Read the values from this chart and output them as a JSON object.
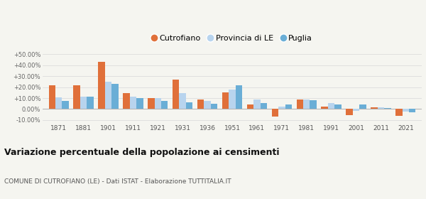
{
  "years": [
    1871,
    1881,
    1901,
    1911,
    1921,
    1931,
    1936,
    1951,
    1961,
    1971,
    1981,
    1991,
    2001,
    2011,
    2021
  ],
  "cutrofiano": [
    21.5,
    21.5,
    43.0,
    14.5,
    10.0,
    27.0,
    9.0,
    15.5,
    4.5,
    -7.0,
    8.5,
    2.0,
    -5.5,
    1.5,
    -6.0
  ],
  "provincia_le": [
    10.5,
    11.5,
    25.0,
    11.5,
    10.0,
    14.5,
    7.5,
    18.0,
    8.5,
    2.5,
    9.0,
    5.5,
    -1.5,
    1.5,
    -2.5
  ],
  "puglia": [
    7.5,
    11.5,
    23.0,
    10.0,
    7.5,
    6.0,
    5.0,
    21.5,
    5.5,
    4.5,
    8.0,
    4.0,
    4.0,
    1.0,
    -3.0
  ],
  "cutrofiano_color": "#e0703a",
  "provincia_color": "#b8d4ee",
  "puglia_color": "#6aaed6",
  "title": "Variazione percentuale della popolazione ai censimenti",
  "subtitle": "COMUNE DI CUTROFIANO (LE) - Dati ISTAT - Elaborazione TUTTITALIA.IT",
  "ylim": [
    -13,
    54
  ],
  "yticks": [
    -10,
    0,
    10,
    20,
    30,
    40,
    50
  ],
  "ytick_labels": [
    "-10.00%",
    "0.00%",
    "+10.00%",
    "+20.00%",
    "+30.00%",
    "+40.00%",
    "+50.00%"
  ],
  "legend_labels": [
    "Cutrofiano",
    "Provincia di LE",
    "Puglia"
  ],
  "bar_width": 0.27,
  "bg_color": "#f5f5f0"
}
